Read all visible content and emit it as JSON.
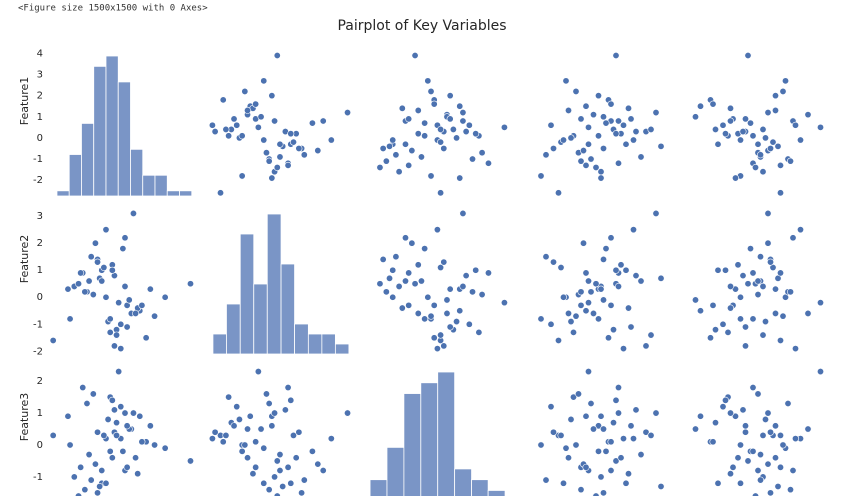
{
  "console_output": "<Figure size 1500x1500 with 0 Axes>",
  "chart_data": {
    "type": "pairplot",
    "title": "Pairplot of Key Variables",
    "color": "#4c72b0",
    "hist_color": "#7a95c6",
    "features": [
      {
        "name": "Feature1",
        "lim": [
          -2.75,
          4.35
        ],
        "ticks": [
          -2,
          -1,
          0,
          1,
          2,
          3,
          4
        ],
        "values": [
          3.9,
          -2.6,
          1.2,
          0.5,
          -0.3,
          2.0,
          -1.8,
          0.8,
          0.1,
          -0.9,
          1.5,
          -0.5,
          0.3,
          2.7,
          -1.2,
          0.9,
          -0.1,
          0.6,
          -1.6,
          1.1,
          0.2,
          -0.7,
          1.8,
          -0.4,
          0.0,
          0.7,
          -1.0,
          1.4,
          -0.2,
          0.4,
          -1.4,
          2.2,
          0.3,
          -0.6,
          1.0,
          -0.8,
          0.6,
          -1.9,
          1.3,
          0.2,
          -0.3,
          0.9,
          -1.1,
          1.6,
          -0.5,
          0.1,
          0.8,
          -1.3,
          0.4,
          -0.1
        ],
        "hist": {
          "bins": [
            -2.42,
            -1.84,
            -1.26,
            -0.68,
            -0.1,
            0.48,
            1.06,
            1.64,
            2.22,
            2.8,
            3.38,
            3.96
          ],
          "counts": [
            1,
            8,
            14,
            25,
            27,
            22,
            9,
            4,
            4,
            1,
            1
          ]
        }
      },
      {
        "name": "Feature2",
        "lim": [
          -2.1,
          3.45
        ],
        "ticks": [
          -2,
          -1,
          0,
          1,
          2,
          3
        ],
        "values": [
          0.5,
          -1.6,
          3.1,
          -0.2,
          1.0,
          0.3,
          -0.8,
          2.2,
          -1.3,
          0.6,
          -0.5,
          1.4,
          -1.8,
          0.0,
          0.9,
          -0.3,
          2.5,
          -1.0,
          0.4,
          -0.6,
          1.2,
          0.1,
          -1.5,
          0.7,
          -0.9,
          1.8,
          0.2,
          -0.4,
          1.1,
          -1.2,
          0.5,
          -0.7,
          0.8,
          2.0,
          -0.1,
          1.5,
          -1.9,
          0.3,
          -0.6,
          1.0,
          0.6,
          -1.1,
          0.2,
          -0.3,
          1.3,
          -0.8,
          0.4,
          0.9,
          -1.4,
          0.0
        ],
        "hist": {
          "bins": [
            -1.88,
            -1.38,
            -0.87,
            -0.37,
            0.13,
            0.64,
            1.14,
            1.65,
            2.15,
            2.65,
            3.15
          ],
          "counts": [
            2,
            5,
            12,
            7,
            14,
            9,
            3,
            2,
            2,
            1
          ]
        }
      },
      {
        "name": "Feature3",
        "lim": [
          -2.1,
          2.6
        ],
        "ticks": [
          -1,
          0,
          1,
          2
        ],
        "values": [
          -0.5,
          0.3,
          1.0,
          2.3,
          -1.2,
          0.6,
          0.0,
          -0.8,
          1.5,
          -0.3,
          0.9,
          -1.5,
          0.4,
          -0.1,
          1.8,
          -0.7,
          0.2,
          1.2,
          -1.0,
          0.5,
          -0.4,
          1.6,
          0.1,
          -1.3,
          0.8,
          -0.2,
          1.3,
          -0.9,
          0.3,
          0.7,
          -1.6,
          0.0,
          1.1,
          -0.6,
          0.5,
          -1.1,
          0.2,
          0.9,
          -0.4,
          1.4,
          -0.8,
          0.6,
          -1.4,
          0.1,
          0.4,
          -0.2,
          1.0,
          -0.7,
          0.3,
          -1.2
        ],
        "hist": {
          "bins": [
            -1.91,
            -1.38,
            -0.85,
            -0.32,
            0.21,
            0.74,
            1.27,
            1.79,
            2.32
          ],
          "counts": [
            3,
            6,
            11,
            12,
            13,
            4,
            3,
            2
          ]
        }
      },
      {
        "lim": [
          -3,
          3
        ],
        "values": [
          0.8,
          -1.5,
          2.4,
          -0.3,
          1.2,
          0.1,
          -2.2,
          0.6,
          -0.9,
          1.8,
          -0.4,
          0.3,
          2.0,
          -1.2,
          0.9,
          -0.6,
          1.5,
          -1.8,
          0.2,
          -0.1,
          1.0,
          -0.7,
          0.5,
          2.6,
          -1.0,
          0.4,
          -0.2,
          1.3,
          -1.4,
          0.7,
          0.0,
          -0.8,
          1.6,
          -0.5,
          0.3,
          -2.0,
          1.1,
          0.2,
          -1.1,
          0.8,
          -0.3,
          1.4,
          -0.6,
          0.6,
          -1.7,
          0.1,
          0.9,
          -0.4,
          2.2,
          -1.3
        ]
      },
      {
        "lim": [
          -3,
          3
        ],
        "values": [
          -0.2,
          1.1,
          0.6,
          2.7,
          -1.4,
          0.9,
          -0.5,
          1.6,
          -1.0,
          0.3,
          -2.1,
          0.7,
          -0.3,
          1.3,
          0.0,
          -0.8,
          1.9,
          -1.2,
          0.4,
          2.2,
          -0.6,
          0.2,
          -1.7,
          1.0,
          0.5,
          -0.1,
          1.4,
          -0.9,
          0.8,
          -1.5,
          0.1,
          1.2,
          -0.4,
          0.6,
          -2.3,
          0.3,
          1.7,
          -0.7,
          0.9,
          -1.1,
          0.2,
          -0.3,
          1.5,
          -1.6,
          0.7,
          0.0,
          -0.9,
          1.1,
          0.4,
          -0.5
        ]
      }
    ]
  }
}
